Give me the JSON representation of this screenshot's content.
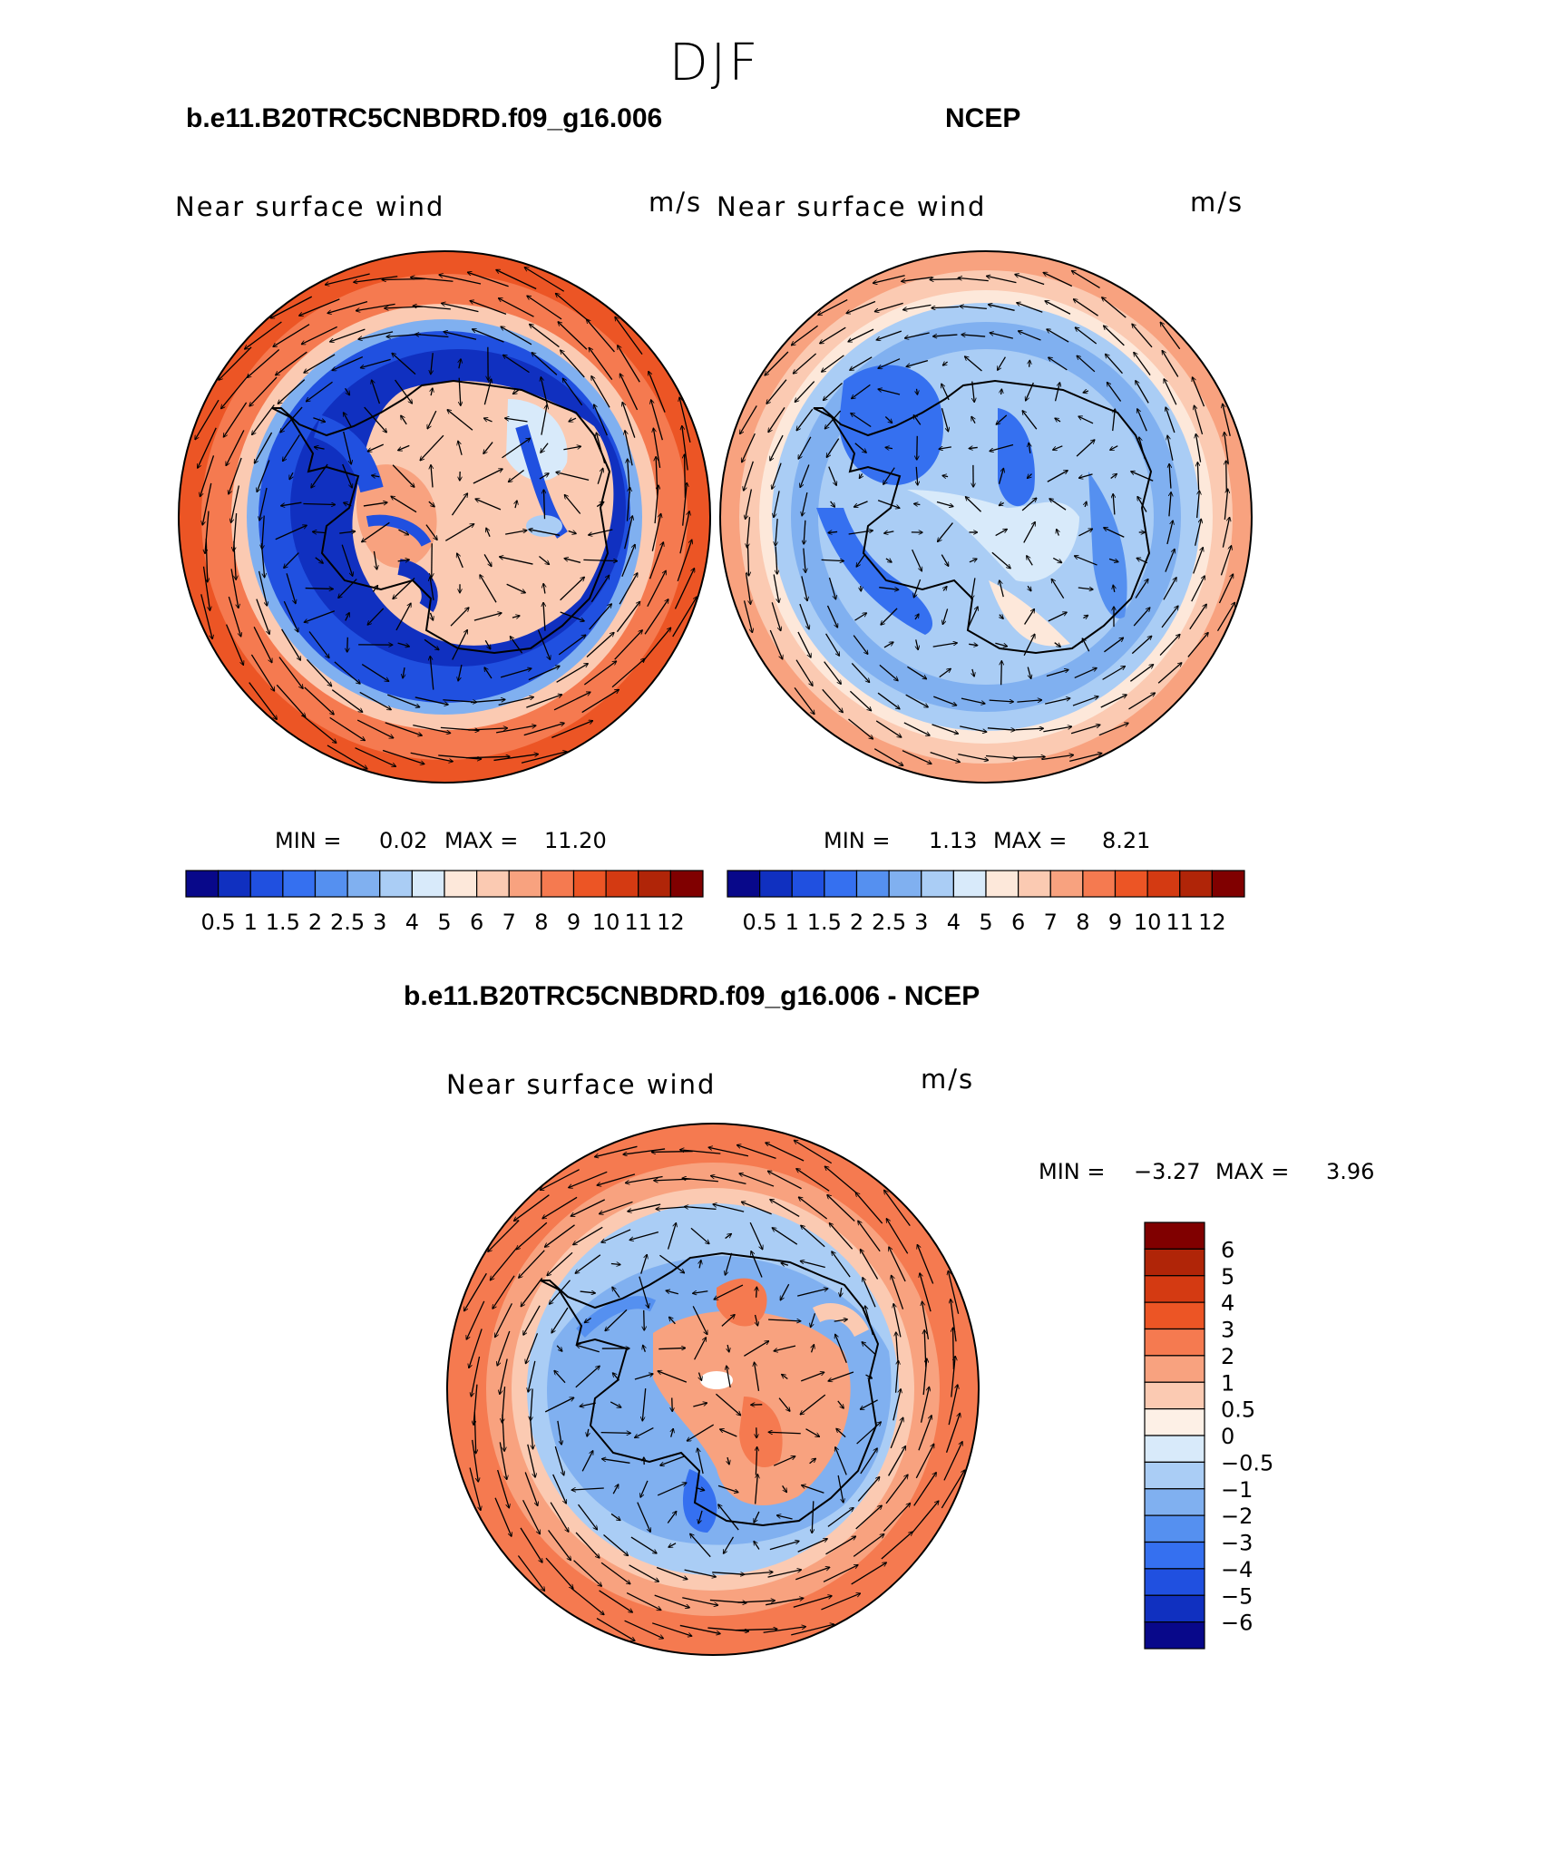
{
  "title": "DJF",
  "colors": {
    "full_palette": [
      "#08088a",
      "#1030c0",
      "#2050e0",
      "#3570f0",
      "#5590f0",
      "#80b0f0",
      "#aacdf5",
      "#d8eafa",
      "#fde8da",
      "#fbcab2",
      "#f8a27f",
      "#f57a50",
      "#ec5525",
      "#d43a12",
      "#b02508",
      "#800000"
    ],
    "diff_palette": [
      "#08088a",
      "#1030c0",
      "#2050e0",
      "#3570f0",
      "#5590f0",
      "#80b0f0",
      "#aacdf5",
      "#d8eafa",
      "#fdf0e6",
      "#fbcab2",
      "#f8a27f",
      "#f57a50",
      "#ec5525",
      "#d43a12",
      "#b02508",
      "#800000"
    ],
    "coast": "#000000",
    "arrow": "#000000"
  },
  "panels": [
    {
      "id": "model",
      "header": "b.e11.B20TRC5CNBDRD.f09_g16.006",
      "variable": "Near surface wind",
      "units": "m/s",
      "stats": {
        "min_label": "MIN =",
        "min": "0.02",
        "max_label": "MAX =",
        "max": "11.20"
      },
      "colorbar_labels": [
        "0.5",
        "1",
        "1.5",
        "2",
        "2.5",
        "3",
        "4",
        "5",
        "6",
        "7",
        "8",
        "9",
        "10",
        "11",
        "12"
      ]
    },
    {
      "id": "obs",
      "header": "NCEP",
      "variable": "Near surface wind",
      "units": "m/s",
      "stats": {
        "min_label": "MIN =",
        "min": "1.13",
        "max_label": "MAX =",
        "max": "8.21"
      },
      "colorbar_labels": [
        "0.5",
        "1",
        "1.5",
        "2",
        "2.5",
        "3",
        "4",
        "5",
        "6",
        "7",
        "8",
        "9",
        "10",
        "11",
        "12"
      ]
    },
    {
      "id": "diff",
      "header": "b.e11.B20TRC5CNBDRD.f09_g16.006 - NCEP",
      "variable": "Near surface wind",
      "units": "m/s",
      "stats": {
        "min_label": "MIN =",
        "min": "−3.27",
        "max_label": "MAX =",
        "max": "3.96"
      },
      "colorbar_labels": [
        "6",
        "5",
        "4",
        "3",
        "2",
        "1",
        "0.5",
        "0",
        "−0.5",
        "−1",
        "−2",
        "−3",
        "−4",
        "−5",
        "−6"
      ]
    }
  ]
}
